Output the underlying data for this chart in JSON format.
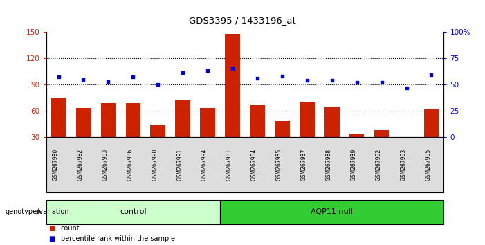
{
  "title": "GDS3395 / 1433196_at",
  "samples": [
    "GSM267980",
    "GSM267982",
    "GSM267983",
    "GSM267986",
    "GSM267990",
    "GSM267991",
    "GSM267994",
    "GSM267981",
    "GSM267984",
    "GSM267985",
    "GSM267987",
    "GSM267988",
    "GSM267989",
    "GSM267992",
    "GSM267993",
    "GSM267995"
  ],
  "counts": [
    75,
    63,
    69,
    69,
    44,
    72,
    63,
    148,
    67,
    48,
    70,
    65,
    33,
    38,
    30,
    62
  ],
  "percentiles": [
    57,
    55,
    53,
    57,
    50,
    61,
    63,
    65,
    56,
    58,
    54,
    54,
    52,
    52,
    47,
    59
  ],
  "n_control": 7,
  "n_aqp11": 9,
  "control_label": "control",
  "aqp11_label": "AQP11 null",
  "control_color": "#ccffcc",
  "aqp11_color": "#33cc33",
  "bar_color": "#cc2200",
  "dot_color": "#0000cc",
  "ylim_left": [
    30,
    150
  ],
  "ylim_right": [
    0,
    100
  ],
  "yticks_left": [
    30,
    60,
    90,
    120,
    150
  ],
  "yticks_right": [
    0,
    25,
    50,
    75,
    100
  ],
  "bg_color": "#ffffff",
  "grid_color": "#000000",
  "bar_width": 0.6,
  "tick_bg": "#dddddd",
  "legend_count_label": "count",
  "legend_pct_label": "percentile rank within the sample",
  "genotype_label": "genotype/variation"
}
